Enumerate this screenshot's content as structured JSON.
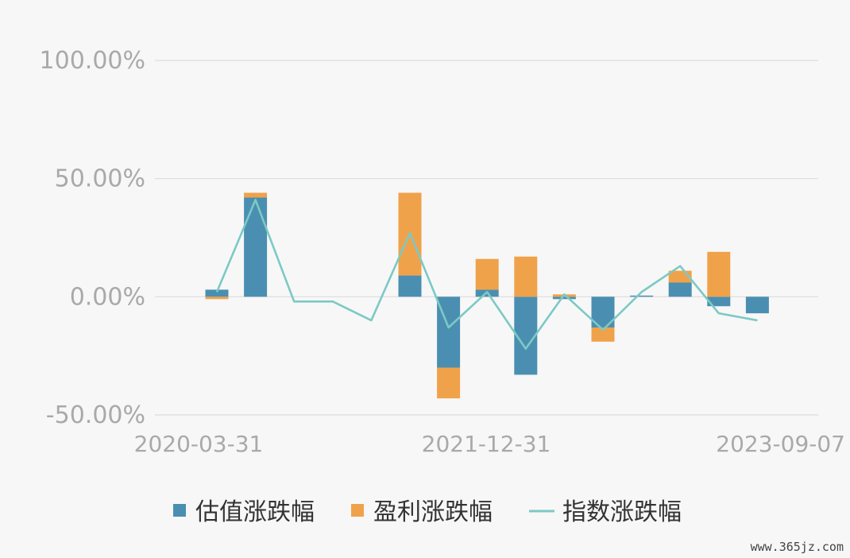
{
  "chart_data": {
    "type": "bar",
    "stacked": true,
    "x_tick_labels": [
      "2020-03-31",
      "2021-12-31",
      "2023-09-07"
    ],
    "y_tick_labels": [
      "100.00%",
      "50.00%",
      "0.00%",
      "-50.00%"
    ],
    "ylim": [
      -50,
      100
    ],
    "grid": true,
    "legend_position": "bottom",
    "series": [
      {
        "name": "估值涨跌幅",
        "type": "bar",
        "color": "#4a8fb1",
        "values": [
          3,
          42,
          null,
          null,
          null,
          9,
          -30,
          3,
          -33,
          -1,
          -13,
          0.5,
          6,
          -4,
          -7
        ]
      },
      {
        "name": "盈利涨跌幅",
        "type": "bar",
        "color": "#f0a24a",
        "values": [
          -1,
          2,
          null,
          null,
          null,
          35,
          -13,
          13,
          17,
          1,
          -6,
          0,
          5,
          19,
          0
        ]
      },
      {
        "name": "指数涨跌幅",
        "type": "line",
        "color": "#7cc9c5",
        "values": [
          2,
          41,
          -2,
          -2,
          -10,
          27,
          -13,
          2,
          -22,
          1,
          -14,
          2,
          13,
          -7,
          -10
        ]
      }
    ]
  },
  "watermark": "www.365jz.com"
}
